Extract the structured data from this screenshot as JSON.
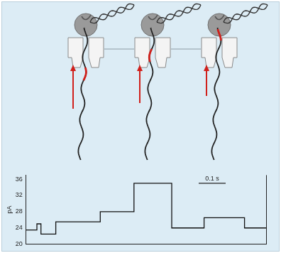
{
  "chart_data": {
    "type": "line",
    "y_label": "pA",
    "x": [
      0,
      0.04,
      0.055,
      0.11,
      0.275,
      0.4,
      0.54,
      0.66,
      0.81,
      0.89
    ],
    "values": [
      23.5,
      25,
      22.5,
      25.5,
      28,
      35,
      24,
      26.5,
      24,
      24
    ],
    "color": "#111111",
    "line_style": "steps",
    "marker": "none",
    "xlim": [
      0,
      0.89
    ],
    "ylim": [
      20,
      37
    ],
    "yticks": [
      20,
      24,
      28,
      32,
      36
    ],
    "tick_labels": "y",
    "grid": false,
    "scale_bar": {
      "x": 0.64,
      "y": 35,
      "length": 0.1,
      "label": "0.1 s"
    }
  }
}
